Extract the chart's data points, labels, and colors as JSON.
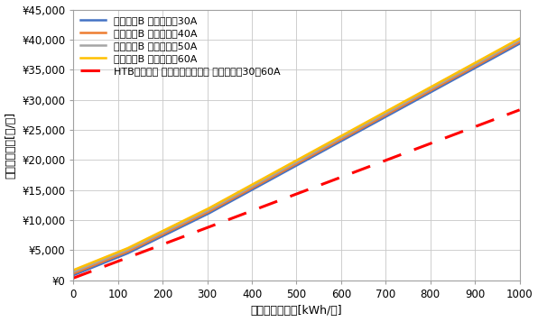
{
  "xlabel": "月間電力使用量[kWh/月]",
  "ylabel": "推定電気料金[円/月]",
  "xlim": [
    0,
    1000
  ],
  "ylim": [
    0,
    45000
  ],
  "xticks": [
    0,
    100,
    200,
    300,
    400,
    500,
    600,
    700,
    800,
    900,
    1000
  ],
  "yticks": [
    0,
    5000,
    10000,
    15000,
    20000,
    25000,
    30000,
    35000,
    40000,
    45000
  ],
  "ytick_labels": [
    "¥0",
    "¥5,000",
    "¥10,000",
    "¥15,000",
    "¥20,000",
    "¥25,000",
    "¥30,000",
    "¥35,000",
    "¥40,000",
    "¥45,000"
  ],
  "lines": [
    {
      "label": "従量電灯B 契約容量：30A",
      "color": "#4472C4",
      "base_charge": 858.0,
      "tiers": [
        {
          "up_to": 120,
          "rate": 29.8
        },
        {
          "up_to": 300,
          "rate": 36.4
        },
        {
          "up_to": 9999,
          "rate": 40.49
        }
      ]
    },
    {
      "label": "従量電灯B 契約容量：40A",
      "color": "#ED7D31",
      "base_charge": 1144.0,
      "tiers": [
        {
          "up_to": 120,
          "rate": 29.8
        },
        {
          "up_to": 300,
          "rate": 36.4
        },
        {
          "up_to": 9999,
          "rate": 40.49
        }
      ]
    },
    {
      "label": "従量電灯B 契約容量：50A",
      "color": "#A5A5A5",
      "base_charge": 1430.0,
      "tiers": [
        {
          "up_to": 120,
          "rate": 29.8
        },
        {
          "up_to": 300,
          "rate": 36.4
        },
        {
          "up_to": 9999,
          "rate": 40.49
        }
      ]
    },
    {
      "label": "従量電灯B 契約容量：60A",
      "color": "#FFC000",
      "base_charge": 1716.0,
      "tiers": [
        {
          "up_to": 120,
          "rate": 29.8
        },
        {
          "up_to": 300,
          "rate": 36.4
        },
        {
          "up_to": 9999,
          "rate": 40.49
        }
      ]
    }
  ],
  "htb_line": {
    "label": "HTBエナジー ベーシックプラン 契約容量：30～60A",
    "color": "#FF0000",
    "linestyle": "--",
    "linewidth": 2.2,
    "base_charge": 385.0,
    "rate": 27.94
  },
  "bg_color": "#FFFFFF",
  "grid_color": "#C8C8C8",
  "legend_fontsize": 8.0,
  "axis_label_fontsize": 9.0,
  "tick_fontsize": 8.5,
  "line_linewidth": 1.8
}
